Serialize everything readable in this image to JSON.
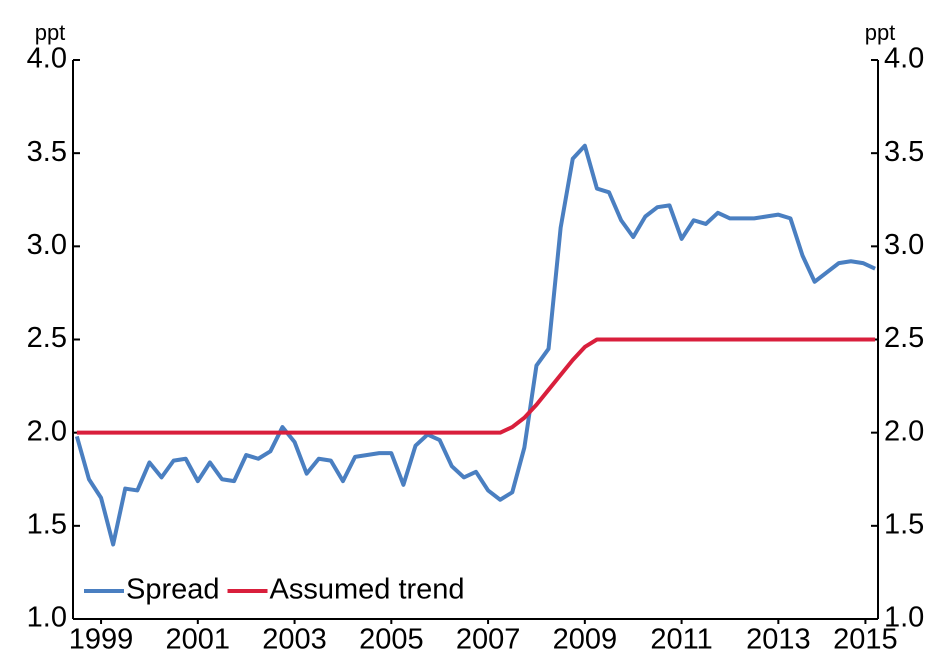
{
  "chart_data": {
    "type": "line",
    "y_label": "ppt",
    "y2_label": "ppt",
    "x": [
      1999,
      1999.25,
      1999.5,
      1999.75,
      2000,
      2000.25,
      2000.5,
      2000.75,
      2001,
      2001.25,
      2001.5,
      2001.75,
      2002,
      2002.25,
      2002.5,
      2002.75,
      2003,
      2003.25,
      2003.5,
      2003.75,
      2004,
      2004.25,
      2004.5,
      2004.75,
      2005,
      2005.25,
      2005.5,
      2005.75,
      2006,
      2006.25,
      2006.5,
      2006.75,
      2007,
      2007.25,
      2007.5,
      2007.75,
      2008,
      2008.25,
      2008.5,
      2008.75,
      2009,
      2009.25,
      2009.5,
      2009.75,
      2010,
      2010.25,
      2010.5,
      2010.75,
      2011,
      2011.25,
      2011.5,
      2011.75,
      2012,
      2012.25,
      2012.5,
      2012.75,
      2013,
      2013.25,
      2013.5,
      2013.75,
      2014,
      2014.25,
      2014.5,
      2014.75,
      2015,
      2015.25,
      2015.5
    ],
    "series": [
      {
        "name": "Spread",
        "color": "#4a7fc1",
        "values": [
          1.98,
          1.75,
          1.65,
          1.4,
          1.7,
          1.69,
          1.84,
          1.76,
          1.85,
          1.86,
          1.74,
          1.84,
          1.75,
          1.74,
          1.88,
          1.86,
          1.9,
          2.03,
          1.95,
          1.78,
          1.86,
          1.85,
          1.74,
          1.87,
          1.88,
          1.89,
          1.89,
          1.72,
          1.93,
          1.99,
          1.96,
          1.82,
          1.76,
          1.79,
          1.69,
          1.64,
          1.68,
          1.92,
          2.36,
          2.45,
          3.1,
          3.47,
          3.54,
          3.31,
          3.29,
          3.14,
          3.05,
          3.16,
          3.21,
          3.22,
          3.04,
          3.14,
          3.12,
          3.18,
          3.15,
          3.15,
          3.15,
          3.16,
          3.17,
          3.15,
          2.95,
          2.81,
          2.86,
          2.91,
          2.92,
          2.91,
          2.88
        ]
      },
      {
        "name": "Assumed trend",
        "color": "#d91f3c",
        "values": [
          2,
          2,
          2,
          2,
          2,
          2,
          2,
          2,
          2,
          2,
          2,
          2,
          2,
          2,
          2,
          2,
          2,
          2,
          2,
          2,
          2,
          2,
          2,
          2,
          2,
          2,
          2,
          2,
          2,
          2,
          2,
          2,
          2,
          2,
          2,
          2,
          2.03,
          2.08,
          2.15,
          2.23,
          2.31,
          2.39,
          2.46,
          2.5,
          2.5,
          2.5,
          2.5,
          2.5,
          2.5,
          2.5,
          2.5,
          2.5,
          2.5,
          2.5,
          2.5,
          2.5,
          2.5,
          2.5,
          2.5,
          2.5,
          2.5,
          2.5,
          2.5,
          2.5,
          2.5,
          2.5,
          2.5
        ]
      }
    ],
    "xlim": [
      1998.92,
      2015.56
    ],
    "xticks": [
      {
        "value": 1999.5,
        "label": "1999"
      },
      {
        "value": 2001.5,
        "label": "2001"
      },
      {
        "value": 2003.5,
        "label": "2003"
      },
      {
        "value": 2005.5,
        "label": "2005"
      },
      {
        "value": 2007.5,
        "label": "2007"
      },
      {
        "value": 2009.5,
        "label": "2009"
      },
      {
        "value": 2011.5,
        "label": "2011"
      },
      {
        "value": 2013.5,
        "label": "2013"
      },
      {
        "value": 2015.3,
        "label": "2015"
      }
    ],
    "ylim": [
      1,
      4
    ],
    "yticks": [
      {
        "value": 1,
        "label": "1.0"
      },
      1.5,
      {
        "value": 2,
        "label": "2.0"
      },
      2.5,
      {
        "value": 3,
        "label": "3.0"
      },
      3.5,
      {
        "value": 4,
        "label": "4.0"
      }
    ],
    "y2lim": [
      1,
      4
    ],
    "y2ticks": [
      {
        "value": 1,
        "label": "1.0"
      },
      1.5,
      {
        "value": 2,
        "label": "2.0"
      },
      2.5,
      {
        "value": 3,
        "label": "3.0"
      },
      3.5,
      {
        "value": 4,
        "label": "4.0"
      }
    ],
    "legend": "lower left"
  }
}
